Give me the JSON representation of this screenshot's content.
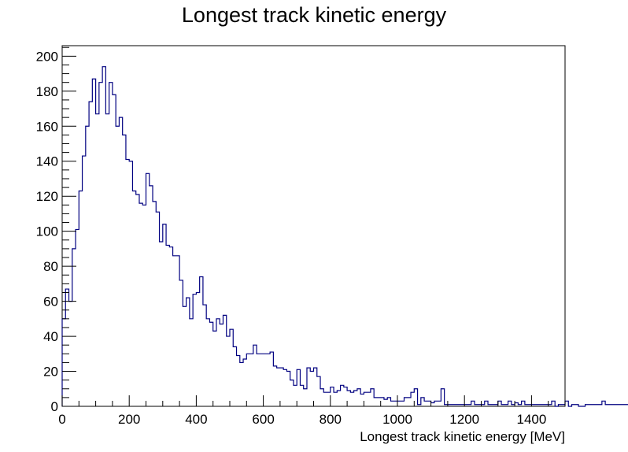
{
  "chart_data": {
    "type": "bar",
    "title": "Longest track kinetic energy",
    "xlabel": "Longest track kinetic energy [MeV]",
    "ylabel": "",
    "xlim": [
      0,
      1500
    ],
    "ylim": [
      0,
      206
    ],
    "x_ticks": [
      0,
      200,
      400,
      600,
      800,
      1000,
      1200,
      1400
    ],
    "y_ticks": [
      0,
      20,
      40,
      60,
      80,
      100,
      120,
      140,
      160,
      180,
      200
    ],
    "bin_width": 10,
    "grid": false,
    "line_color": "#000080",
    "values": [
      50,
      67,
      60,
      90,
      101,
      123,
      143,
      160,
      174,
      187,
      167,
      185,
      194,
      167,
      185,
      178,
      160,
      165,
      155,
      141,
      140,
      123,
      121,
      116,
      115,
      133,
      126,
      117,
      111,
      94,
      104,
      92,
      91,
      86,
      86,
      72,
      57,
      62,
      50,
      64,
      65,
      74,
      58,
      50,
      48,
      43,
      50,
      47,
      52,
      40,
      44,
      34,
      29,
      25,
      27,
      30,
      30,
      35,
      30,
      30,
      30,
      30,
      31,
      23,
      22,
      22,
      21,
      20,
      15,
      12,
      21,
      12,
      10,
      22,
      20,
      22,
      17,
      10,
      8,
      8,
      11,
      8,
      9,
      12,
      11,
      9,
      8,
      9,
      10,
      7,
      8,
      8,
      10,
      5,
      5,
      5,
      4,
      5,
      3,
      3,
      3,
      3,
      5,
      5,
      8,
      10,
      1,
      5,
      3,
      3,
      2,
      3,
      3,
      10,
      1,
      1,
      1,
      1,
      1,
      1,
      1,
      1,
      3,
      1,
      1,
      1,
      3,
      1,
      1,
      1,
      3,
      1,
      1,
      3,
      1,
      2,
      1,
      3,
      1,
      1,
      1,
      1,
      1,
      1,
      1,
      1,
      3,
      0,
      1,
      1,
      3,
      0,
      1,
      1,
      0,
      0,
      1,
      1,
      1,
      1,
      1,
      3,
      1,
      1,
      1,
      1,
      1,
      1,
      1,
      1,
      1,
      1,
      1,
      1,
      1,
      1,
      1,
      1,
      3,
      0,
      0
    ]
  }
}
